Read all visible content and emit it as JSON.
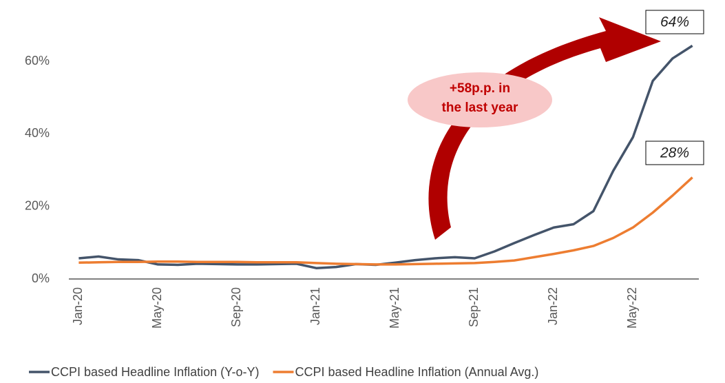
{
  "chart_data": {
    "type": "line",
    "categories": [
      "Jan-20",
      null,
      null,
      null,
      "May-20",
      null,
      null,
      null,
      "Sep-20",
      null,
      null,
      null,
      "Jan-21",
      null,
      null,
      null,
      "May-21",
      null,
      null,
      null,
      "Sep-21",
      null,
      null,
      null,
      "Jan-22",
      null,
      null,
      null,
      "May-22",
      null,
      null,
      null
    ],
    "series": [
      {
        "name": "CCPI based Headline Inflation (Y-o-Y)",
        "color": "#44546a",
        "values": [
          5.7,
          6.2,
          5.4,
          5.2,
          4.0,
          3.9,
          4.2,
          4.1,
          4.0,
          4.0,
          4.1,
          4.2,
          3.0,
          3.3,
          4.1,
          3.9,
          4.5,
          5.2,
          5.7,
          6.0,
          5.7,
          7.6,
          9.9,
          12.1,
          14.2,
          15.1,
          18.7,
          29.8,
          39.1,
          54.6,
          60.8,
          64.3
        ]
      },
      {
        "name": "CCPI based Headline Inflation (Annual Avg.)",
        "color": "#ed7d31",
        "values": [
          4.5,
          4.6,
          4.7,
          4.7,
          4.8,
          4.8,
          4.7,
          4.7,
          4.7,
          4.6,
          4.6,
          4.6,
          4.4,
          4.2,
          4.1,
          4.0,
          4.0,
          4.1,
          4.2,
          4.3,
          4.4,
          4.7,
          5.1,
          6.0,
          6.9,
          7.9,
          9.1,
          11.3,
          14.2,
          18.3,
          23.0,
          28.0
        ]
      }
    ],
    "ylim": [
      0,
      75
    ],
    "yticks": [
      {
        "value": 0,
        "label": "0%"
      },
      {
        "value": 20,
        "label": "20%"
      },
      {
        "value": 40,
        "label": "40%"
      },
      {
        "value": 60,
        "label": "60%"
      }
    ],
    "annotations": [
      "64%",
      "28%"
    ],
    "callout": [
      "+58p.p. in",
      "the last year"
    ]
  }
}
